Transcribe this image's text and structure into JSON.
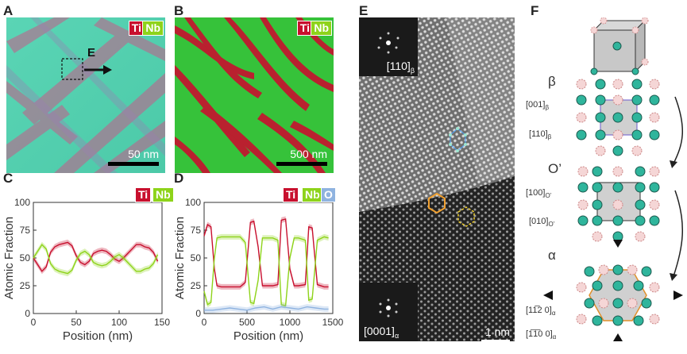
{
  "panels": {
    "A": {
      "label": "A",
      "elements": [
        "Ti",
        "Nb"
      ],
      "inset_label": "E",
      "scale": "50 nm"
    },
    "B": {
      "label": "B",
      "elements": [
        "Ti",
        "Nb"
      ],
      "scale": "500 nm"
    },
    "C": {
      "label": "C",
      "elements": [
        "Ti",
        "Nb"
      ]
    },
    "D": {
      "label": "D",
      "elements": [
        "Ti",
        "Nb",
        "O"
      ]
    },
    "E": {
      "label": "E",
      "fft_top": "[110]",
      "fft_top_sub": "β",
      "fft_bottom": "[0001]",
      "fft_bottom_sub": "α",
      "scale": "1 nm"
    },
    "F": {
      "label": "F",
      "phases": [
        {
          "name": "β",
          "dir1": "[001]",
          "dir1_sub": "β",
          "dir2": "[110]",
          "dir2_sub": "β"
        },
        {
          "name": "O’",
          "dir1": "[100]",
          "dir1_sub": "O’",
          "dir2": "[010]",
          "dir2_sub": "O’"
        },
        {
          "name": "α",
          "dir1": "[11̅2 0]",
          "dir1_sub": "α",
          "dir2": "[1̅1̅0 0]",
          "dir2_sub": "α"
        }
      ]
    }
  },
  "colors": {
    "ti": "#c8102e",
    "nb": "#8ed31a",
    "o": "#8fb3e0",
    "atom": "#2fb59c",
    "atom_pink": "#f5d6d6"
  },
  "chart_data": [
    {
      "panel": "C",
      "type": "line",
      "xlabel": "Position (nm)",
      "ylabel": "Atomic Fraction",
      "xlim": [
        0,
        150
      ],
      "ylim": [
        0,
        100
      ],
      "xticks": [
        0,
        50,
        100,
        150
      ],
      "yticks": [
        0,
        25,
        50,
        75,
        100
      ],
      "series": [
        {
          "name": "Ti",
          "color": "#c8102e",
          "x": [
            0,
            5,
            10,
            15,
            20,
            25,
            30,
            35,
            40,
            45,
            50,
            55,
            60,
            65,
            70,
            75,
            80,
            85,
            90,
            95,
            100,
            105,
            110,
            115,
            120,
            125,
            130,
            135,
            140,
            145
          ],
          "y": [
            50,
            44,
            38,
            42,
            55,
            60,
            62,
            63,
            64,
            61,
            52,
            46,
            44,
            47,
            54,
            56,
            57,
            56,
            53,
            49,
            47,
            50,
            54,
            58,
            62,
            62,
            60,
            59,
            55,
            47
          ]
        },
        {
          "name": "Nb",
          "color": "#8ed31a",
          "x": [
            0,
            5,
            10,
            15,
            20,
            25,
            30,
            35,
            40,
            45,
            50,
            55,
            60,
            65,
            70,
            75,
            80,
            85,
            90,
            95,
            100,
            105,
            110,
            115,
            120,
            125,
            130,
            135,
            140,
            145
          ],
          "y": [
            50,
            56,
            62,
            58,
            45,
            40,
            38,
            37,
            36,
            39,
            48,
            54,
            56,
            53,
            46,
            44,
            43,
            44,
            47,
            51,
            53,
            50,
            46,
            42,
            38,
            38,
            40,
            41,
            45,
            53
          ]
        }
      ]
    },
    {
      "panel": "D",
      "type": "line",
      "xlabel": "Position (nm)",
      "ylabel": "Atomic Fraction",
      "xlim": [
        0,
        1500
      ],
      "ylim": [
        0,
        100
      ],
      "xticks": [
        0,
        500,
        1000,
        1500
      ],
      "yticks": [
        0,
        25,
        50,
        75,
        100
      ],
      "series": [
        {
          "name": "Ti",
          "color": "#c8102e",
          "x": [
            0,
            40,
            80,
            120,
            150,
            200,
            300,
            420,
            480,
            540,
            580,
            630,
            680,
            760,
            800,
            860,
            900,
            950,
            1000,
            1050,
            1100,
            1180,
            1220,
            1260,
            1320,
            1400,
            1450
          ],
          "y": [
            70,
            80,
            78,
            40,
            25,
            24,
            24,
            24,
            28,
            82,
            83,
            60,
            25,
            25,
            25,
            26,
            84,
            85,
            40,
            25,
            25,
            26,
            78,
            77,
            26,
            24,
            24
          ]
        },
        {
          "name": "Nb",
          "color": "#8ed31a",
          "x": [
            0,
            40,
            80,
            120,
            150,
            200,
            300,
            420,
            480,
            540,
            580,
            630,
            680,
            760,
            800,
            860,
            900,
            950,
            1000,
            1050,
            1100,
            1180,
            1220,
            1260,
            1320,
            1400,
            1450
          ],
          "y": [
            20,
            8,
            10,
            50,
            68,
            69,
            69,
            69,
            64,
            10,
            9,
            30,
            68,
            68,
            68,
            66,
            8,
            7,
            50,
            68,
            68,
            66,
            12,
            13,
            66,
            69,
            68
          ]
        },
        {
          "name": "O",
          "color": "#8fb3e0",
          "x": [
            0,
            100,
            200,
            300,
            400,
            500,
            600,
            700,
            800,
            900,
            1000,
            1100,
            1200,
            1300,
            1400,
            1450
          ],
          "y": [
            3,
            3,
            4,
            5,
            4,
            3,
            5,
            6,
            4,
            6,
            5,
            4,
            6,
            5,
            4,
            4
          ]
        }
      ]
    }
  ]
}
